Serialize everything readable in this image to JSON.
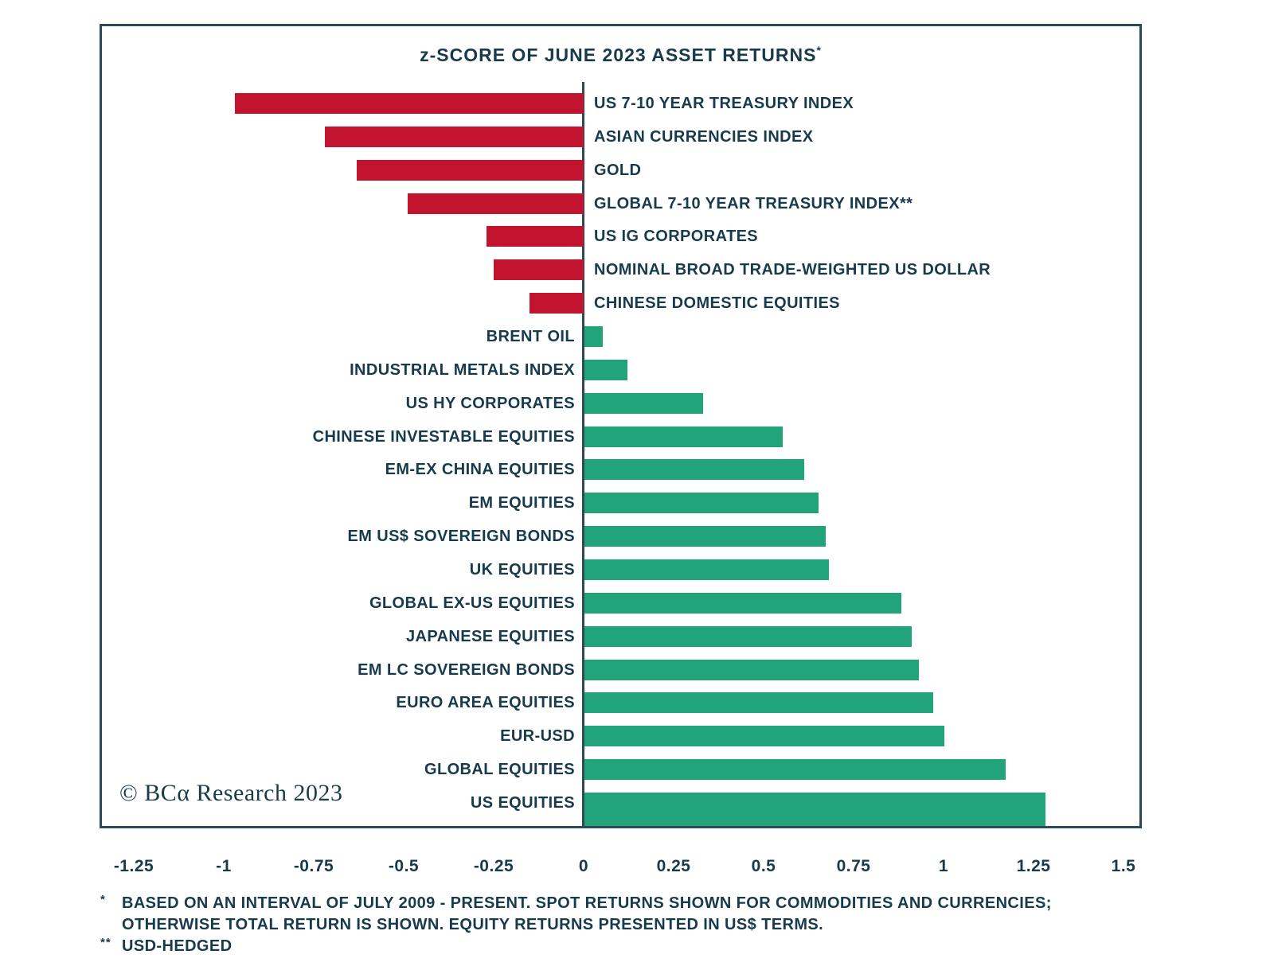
{
  "colors": {
    "text_navy": "#173B4D",
    "frame_border": "#2C4A57",
    "bar_negative_red": "#C3142F",
    "bar_positive_green": "#21A47A",
    "background": "#FFFFFF"
  },
  "title": {
    "text": "z-SCORE OF JUNE 2023 ASSET RETURNS",
    "marker": "*"
  },
  "copyright_line": "© BCα Research 2023",
  "chart_data": {
    "type": "bar",
    "orientation": "horizontal",
    "title": "z-SCORE OF JUNE 2023 ASSET RETURNS*",
    "xlim": [
      -1.35,
      1.55
    ],
    "xticks": [
      -1.25,
      -1,
      -0.75,
      -0.5,
      -0.25,
      0,
      0.25,
      0.5,
      0.75,
      1,
      1.25,
      1.5
    ],
    "xtick_labels": [
      "-1.25",
      "-1",
      "-0.75",
      "-0.5",
      "-0.25",
      "0",
      "0.25",
      "0.5",
      "0.75",
      "1",
      "1.25",
      "1.5"
    ],
    "grid": false,
    "legend": false,
    "negative_color": "#C3142F",
    "positive_color": "#21A47A",
    "label_side_rule": "negative bars labeled right of zero axis, positive bars labeled left of zero axis",
    "categories": [
      "US 7-10 YEAR TREASURY INDEX",
      "ASIAN CURRENCIES INDEX",
      "GOLD",
      "GLOBAL 7-10 YEAR TREASURY INDEX**",
      "US IG CORPORATES",
      "NOMINAL BROAD TRADE-WEIGHTED US DOLLAR",
      "CHINESE DOMESTIC EQUITIES",
      "BRENT OIL",
      "INDUSTRIAL METALS INDEX",
      "US HY CORPORATES",
      "CHINESE INVESTABLE EQUITIES",
      "EM-EX CHINA EQUITIES",
      "EM EQUITIES",
      "EM US$ SOVEREIGN BONDS",
      "UK EQUITIES",
      "GLOBAL EX-US EQUITIES",
      "JAPANESE EQUITIES",
      "EM LC SOVEREIGN BONDS",
      "EURO AREA EQUITIES",
      "EUR-USD",
      "GLOBAL EQUITIES",
      "US EQUITIES"
    ],
    "values": [
      -0.97,
      -0.72,
      -0.63,
      -0.49,
      -0.27,
      -0.25,
      -0.15,
      0.05,
      0.12,
      0.33,
      0.55,
      0.61,
      0.65,
      0.67,
      0.68,
      0.88,
      0.91,
      0.93,
      0.97,
      1.0,
      1.17,
      1.28
    ]
  },
  "footnotes": [
    {
      "marker": "*",
      "line1": "BASED ON AN INTERVAL OF JULY 2009 - PRESENT. SPOT RETURNS SHOWN FOR COMMODITIES AND CURRENCIES;",
      "line2": "OTHERWISE TOTAL RETURN IS SHOWN. EQUITY RETURNS PRESENTED IN US$ TERMS."
    },
    {
      "marker": "**",
      "line1": "USD-HEDGED"
    }
  ]
}
